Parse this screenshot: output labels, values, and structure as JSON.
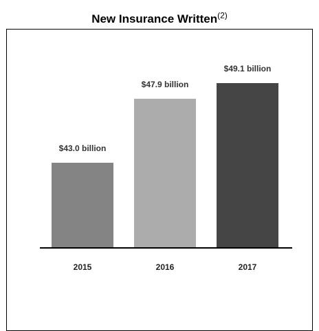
{
  "chart_data": {
    "type": "bar",
    "title": "New Insurance Written",
    "title_note": "(2)",
    "categories": [
      "2015",
      "2016",
      "2017"
    ],
    "values": [
      43.0,
      47.9,
      49.1
    ],
    "data_labels": [
      "$43.0 billion",
      "$47.9 billion",
      "$49.1 billion"
    ],
    "colors": [
      "#848484",
      "#acacac",
      "#454545"
    ],
    "xlabel": "",
    "ylabel": "",
    "grid": false,
    "legend": "none"
  }
}
